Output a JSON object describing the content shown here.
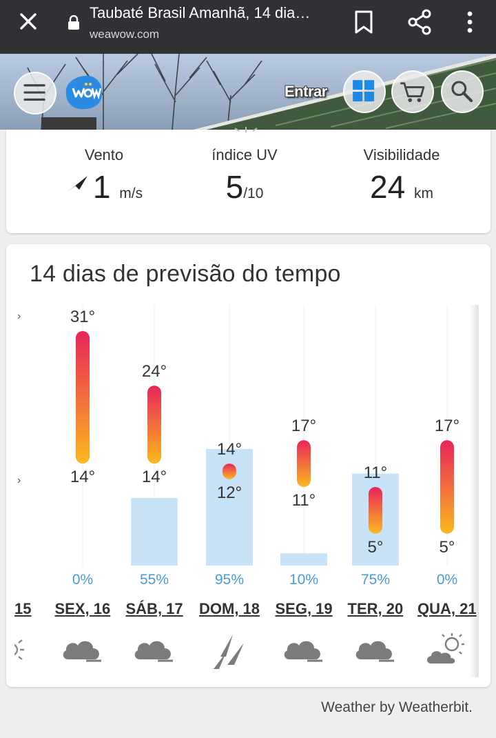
{
  "browser": {
    "title": "Taubaté Brasil Amanhã, 14 dia…",
    "url": "weawow.com"
  },
  "site": {
    "login_label": "Entrar",
    "icons": [
      "menu-icon",
      "weawow-logo",
      "grid-icon",
      "cart-icon",
      "search-icon"
    ]
  },
  "metrics": {
    "wind": {
      "label": "Vento",
      "value": "1",
      "unit": "m/s"
    },
    "uv": {
      "label": "índice UV",
      "value": "5",
      "unit": "/10"
    },
    "visibility": {
      "label": "Visibilidade",
      "value": "24",
      "unit": "km"
    }
  },
  "forecast": {
    "title": "14 dias de previsão do tempo",
    "partial_day_label": "15",
    "days": [
      {
        "label": "SEX, 16",
        "high": "31°",
        "low": "14°",
        "precip": "0%",
        "icon": "cloudy-icon"
      },
      {
        "label": "SÁB, 17",
        "high": "24°",
        "low": "14°",
        "precip": "55%",
        "icon": "cloudy-icon"
      },
      {
        "label": "DOM, 18",
        "high": "14°",
        "low": "12°",
        "precip": "95%",
        "icon": "heavy-rain-icon"
      },
      {
        "label": "SEG, 19",
        "high": "17°",
        "low": "11°",
        "precip": "10%",
        "icon": "cloudy-icon"
      },
      {
        "label": "TER, 20",
        "high": "11°",
        "low": "5°",
        "precip": "75%",
        "icon": "cloudy-icon"
      },
      {
        "label": "QUA, 21",
        "high": "17°",
        "low": "5°",
        "precip": "0%",
        "icon": "partly-sunny-icon"
      }
    ]
  },
  "chart_data": {
    "type": "bar",
    "categories": [
      "SEX, 16",
      "SÁB, 17",
      "DOM, 18",
      "SEG, 19",
      "TER, 20",
      "QUA, 21"
    ],
    "series": [
      {
        "name": "",
        "values": [
          31,
          24,
          14,
          17,
          11,
          17
        ]
      },
      {
        "name": "",
        "values": [
          14,
          14,
          12,
          11,
          5,
          5
        ]
      },
      {
        "name": "",
        "values": [
          0,
          55,
          95,
          10,
          75,
          0
        ]
      }
    ],
    "colors": {
      "temp_high": "#e8245a",
      "temp_low": "#fbb81f",
      "precip_bar": "#c8e3f8",
      "precip_text": "#4a9ad8"
    }
  },
  "footer": {
    "credit": "Weather by Weatherbit."
  }
}
